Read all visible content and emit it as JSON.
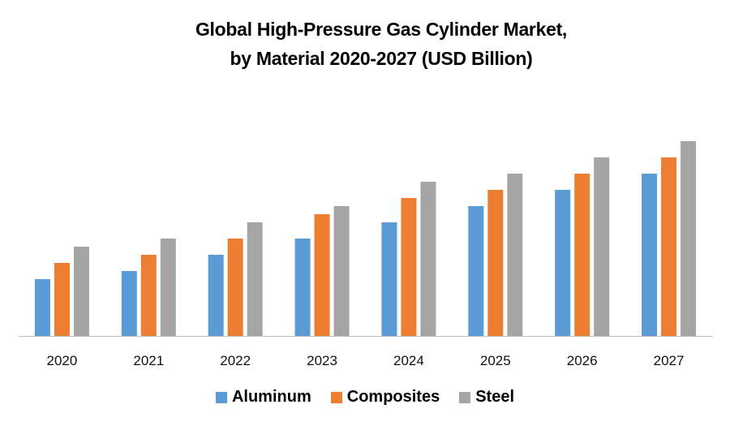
{
  "chart_data": {
    "type": "bar",
    "title": "Global High-Pressure Gas Cylinder Market, by Material 2020-2027 (USD Billion)",
    "title_lines": [
      "Global High-Pressure Gas Cylinder Market,",
      "by Material 2020-2027 (USD Billion)"
    ],
    "xlabel": "",
    "ylabel": "",
    "categories": [
      "2020",
      "2021",
      "2022",
      "2023",
      "2024",
      "2025",
      "2026",
      "2027"
    ],
    "series": [
      {
        "name": "Aluminum",
        "color": "#5B9BD5",
        "values": [
          3.5,
          4.0,
          5.0,
          6.0,
          7.0,
          8.0,
          9.0,
          10.0
        ]
      },
      {
        "name": "Composites",
        "color": "#ED7D31",
        "values": [
          4.5,
          5.0,
          6.0,
          7.5,
          8.5,
          9.0,
          10.0,
          11.0
        ]
      },
      {
        "name": "Steel",
        "color": "#A5A5A5",
        "values": [
          5.5,
          6.0,
          7.0,
          8.0,
          9.5,
          10.0,
          11.0,
          12.0
        ]
      }
    ],
    "ylim": [
      0,
      12
    ],
    "grid": false,
    "legend_position": "bottom"
  }
}
